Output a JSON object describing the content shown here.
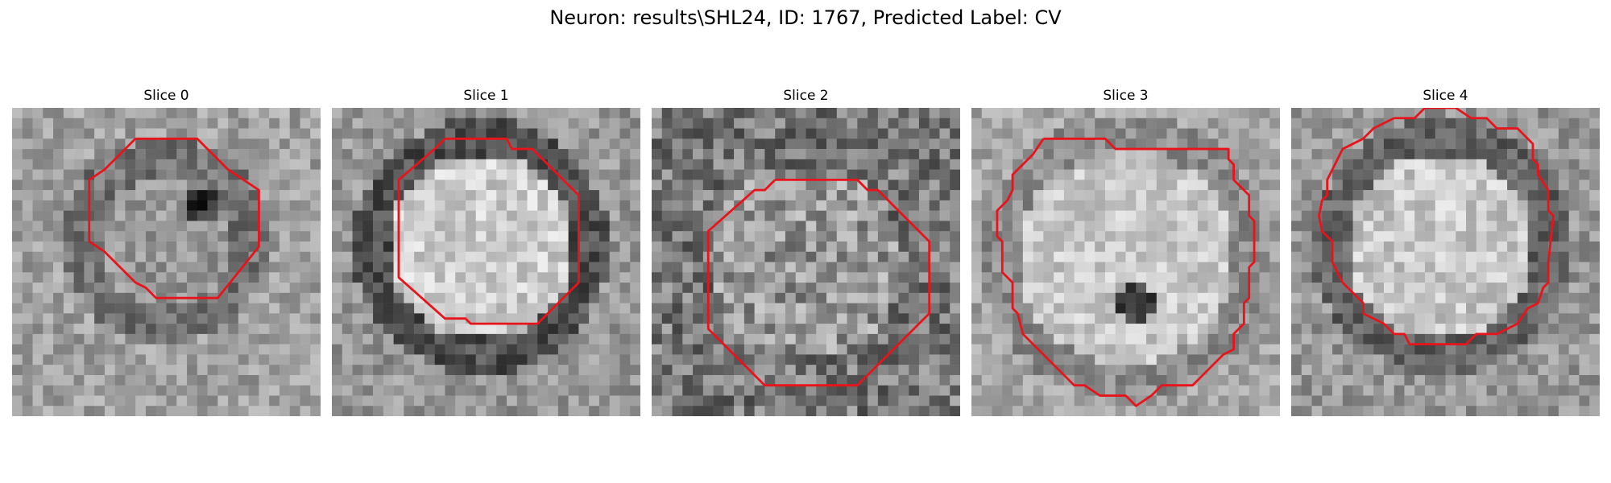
{
  "figure": {
    "title": "Neuron: results\\SHL24, ID: 1767, Predicted Label: CV"
  },
  "panels": [
    {
      "title": "Slice 0",
      "contour_color": "#e8141b"
    },
    {
      "title": "Slice 1",
      "contour_color": "#e8141b"
    },
    {
      "title": "Slice 2",
      "contour_color": "#e8141b"
    },
    {
      "title": "Slice 3",
      "contour_color": "#e8141b"
    },
    {
      "title": "Slice 4",
      "contour_color": "#e8141b"
    }
  ]
}
